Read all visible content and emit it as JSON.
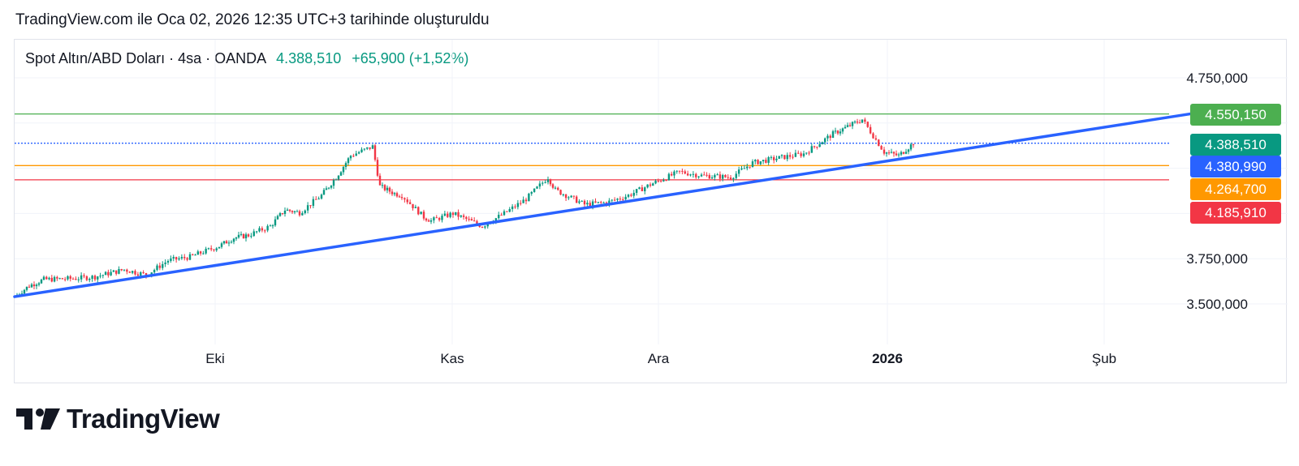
{
  "header": {
    "created_text": "TradingView.com ile Oca 02, 2026 12:35 UTC+3 tarihinde oluşturuldu"
  },
  "legend": {
    "symbol": "Spot Altın/ABD Doları · 4sa · OANDA",
    "last_price": "4.388,510",
    "change": "+65,900 (+1,52%)"
  },
  "colors": {
    "up": "#089981",
    "down": "#f23645",
    "trendline": "#2962ff",
    "green_level": "#4caf50",
    "blue_level": "#2962ff",
    "orange_level": "#ff9800",
    "red_level": "#f23645"
  },
  "price_axis": {
    "ticks": [
      {
        "value": 4750,
        "label": "4.750,000"
      },
      {
        "value": 3750,
        "label": "3.750,000"
      },
      {
        "value": 3500,
        "label": "3.500,000"
      }
    ]
  },
  "time_axis": {
    "ticks": [
      {
        "label": "Eki",
        "bold": false
      },
      {
        "label": "Kas",
        "bold": false
      },
      {
        "label": "Ara",
        "bold": false
      },
      {
        "label": "2026",
        "bold": true
      },
      {
        "label": "Şub",
        "bold": false
      }
    ]
  },
  "price_badges": [
    {
      "label": "4.550,150",
      "value": 4550.15,
      "color": "#4caf50"
    },
    {
      "label": "4.388,510",
      "value": 4388.51,
      "color": "#089981"
    },
    {
      "label": "4.380,990",
      "value": 4380.99,
      "color": "#2962ff"
    },
    {
      "label": "4.264,700",
      "value": 4264.7,
      "color": "#ff9800"
    },
    {
      "label": "4.185,910",
      "value": 4185.91,
      "color": "#f23645"
    }
  ],
  "horizontal_levels": [
    {
      "value": 4550.15,
      "color": "#4caf50",
      "style": "solid"
    },
    {
      "value": 4388.51,
      "color": "#2962ff",
      "style": "dotted"
    },
    {
      "value": 4264.7,
      "color": "#ff9800",
      "style": "solid"
    },
    {
      "value": 4185.91,
      "color": "#f23645",
      "style": "solid"
    }
  ],
  "trendline": {
    "start": {
      "date": "2025-09-01",
      "price": 3540
    },
    "end": {
      "date": "2026-02-12",
      "price": 4570
    }
  },
  "chart_data": {
    "type": "candlestick",
    "timeframe": "4sa",
    "ylim": [
      3300,
      4900
    ],
    "price_path": [
      [
        "2025-09-01",
        3540
      ],
      [
        "2025-09-03",
        3600
      ],
      [
        "2025-09-05",
        3635
      ],
      [
        "2025-09-09",
        3640
      ],
      [
        "2025-09-12",
        3650
      ],
      [
        "2025-09-16",
        3690
      ],
      [
        "2025-09-19",
        3660
      ],
      [
        "2025-09-22",
        3740
      ],
      [
        "2025-09-25",
        3760
      ],
      [
        "2025-09-29",
        3820
      ],
      [
        "2025-10-01",
        3865
      ],
      [
        "2025-10-03",
        3880
      ],
      [
        "2025-10-06",
        3930
      ],
      [
        "2025-10-08",
        4020
      ],
      [
        "2025-10-10",
        4005
      ],
      [
        "2025-10-13",
        4100
      ],
      [
        "2025-10-15",
        4200
      ],
      [
        "2025-10-17",
        4320
      ],
      [
        "2025-10-20",
        4370
      ],
      [
        "2025-10-21",
        4150
      ],
      [
        "2025-10-23",
        4110
      ],
      [
        "2025-10-24",
        4100
      ],
      [
        "2025-10-27",
        3980
      ],
      [
        "2025-10-28",
        3960
      ],
      [
        "2025-10-31",
        4000
      ],
      [
        "2025-11-04",
        3930
      ],
      [
        "2025-11-07",
        4000
      ],
      [
        "2025-11-10",
        4080
      ],
      [
        "2025-11-13",
        4200
      ],
      [
        "2025-11-14",
        4130
      ],
      [
        "2025-11-18",
        4050
      ],
      [
        "2025-11-21",
        4060
      ],
      [
        "2025-11-24",
        4100
      ],
      [
        "2025-11-27",
        4160
      ],
      [
        "2025-12-01",
        4230
      ],
      [
        "2025-12-04",
        4210
      ],
      [
        "2025-12-08",
        4200
      ],
      [
        "2025-12-11",
        4280
      ],
      [
        "2025-12-15",
        4310
      ],
      [
        "2025-12-18",
        4330
      ],
      [
        "2025-12-22",
        4440
      ],
      [
        "2025-12-24",
        4480
      ],
      [
        "2025-12-26",
        4520
      ],
      [
        "2025-12-29",
        4340
      ],
      [
        "2025-12-31",
        4320
      ],
      [
        "2026-01-02",
        4388.51
      ]
    ]
  }
}
